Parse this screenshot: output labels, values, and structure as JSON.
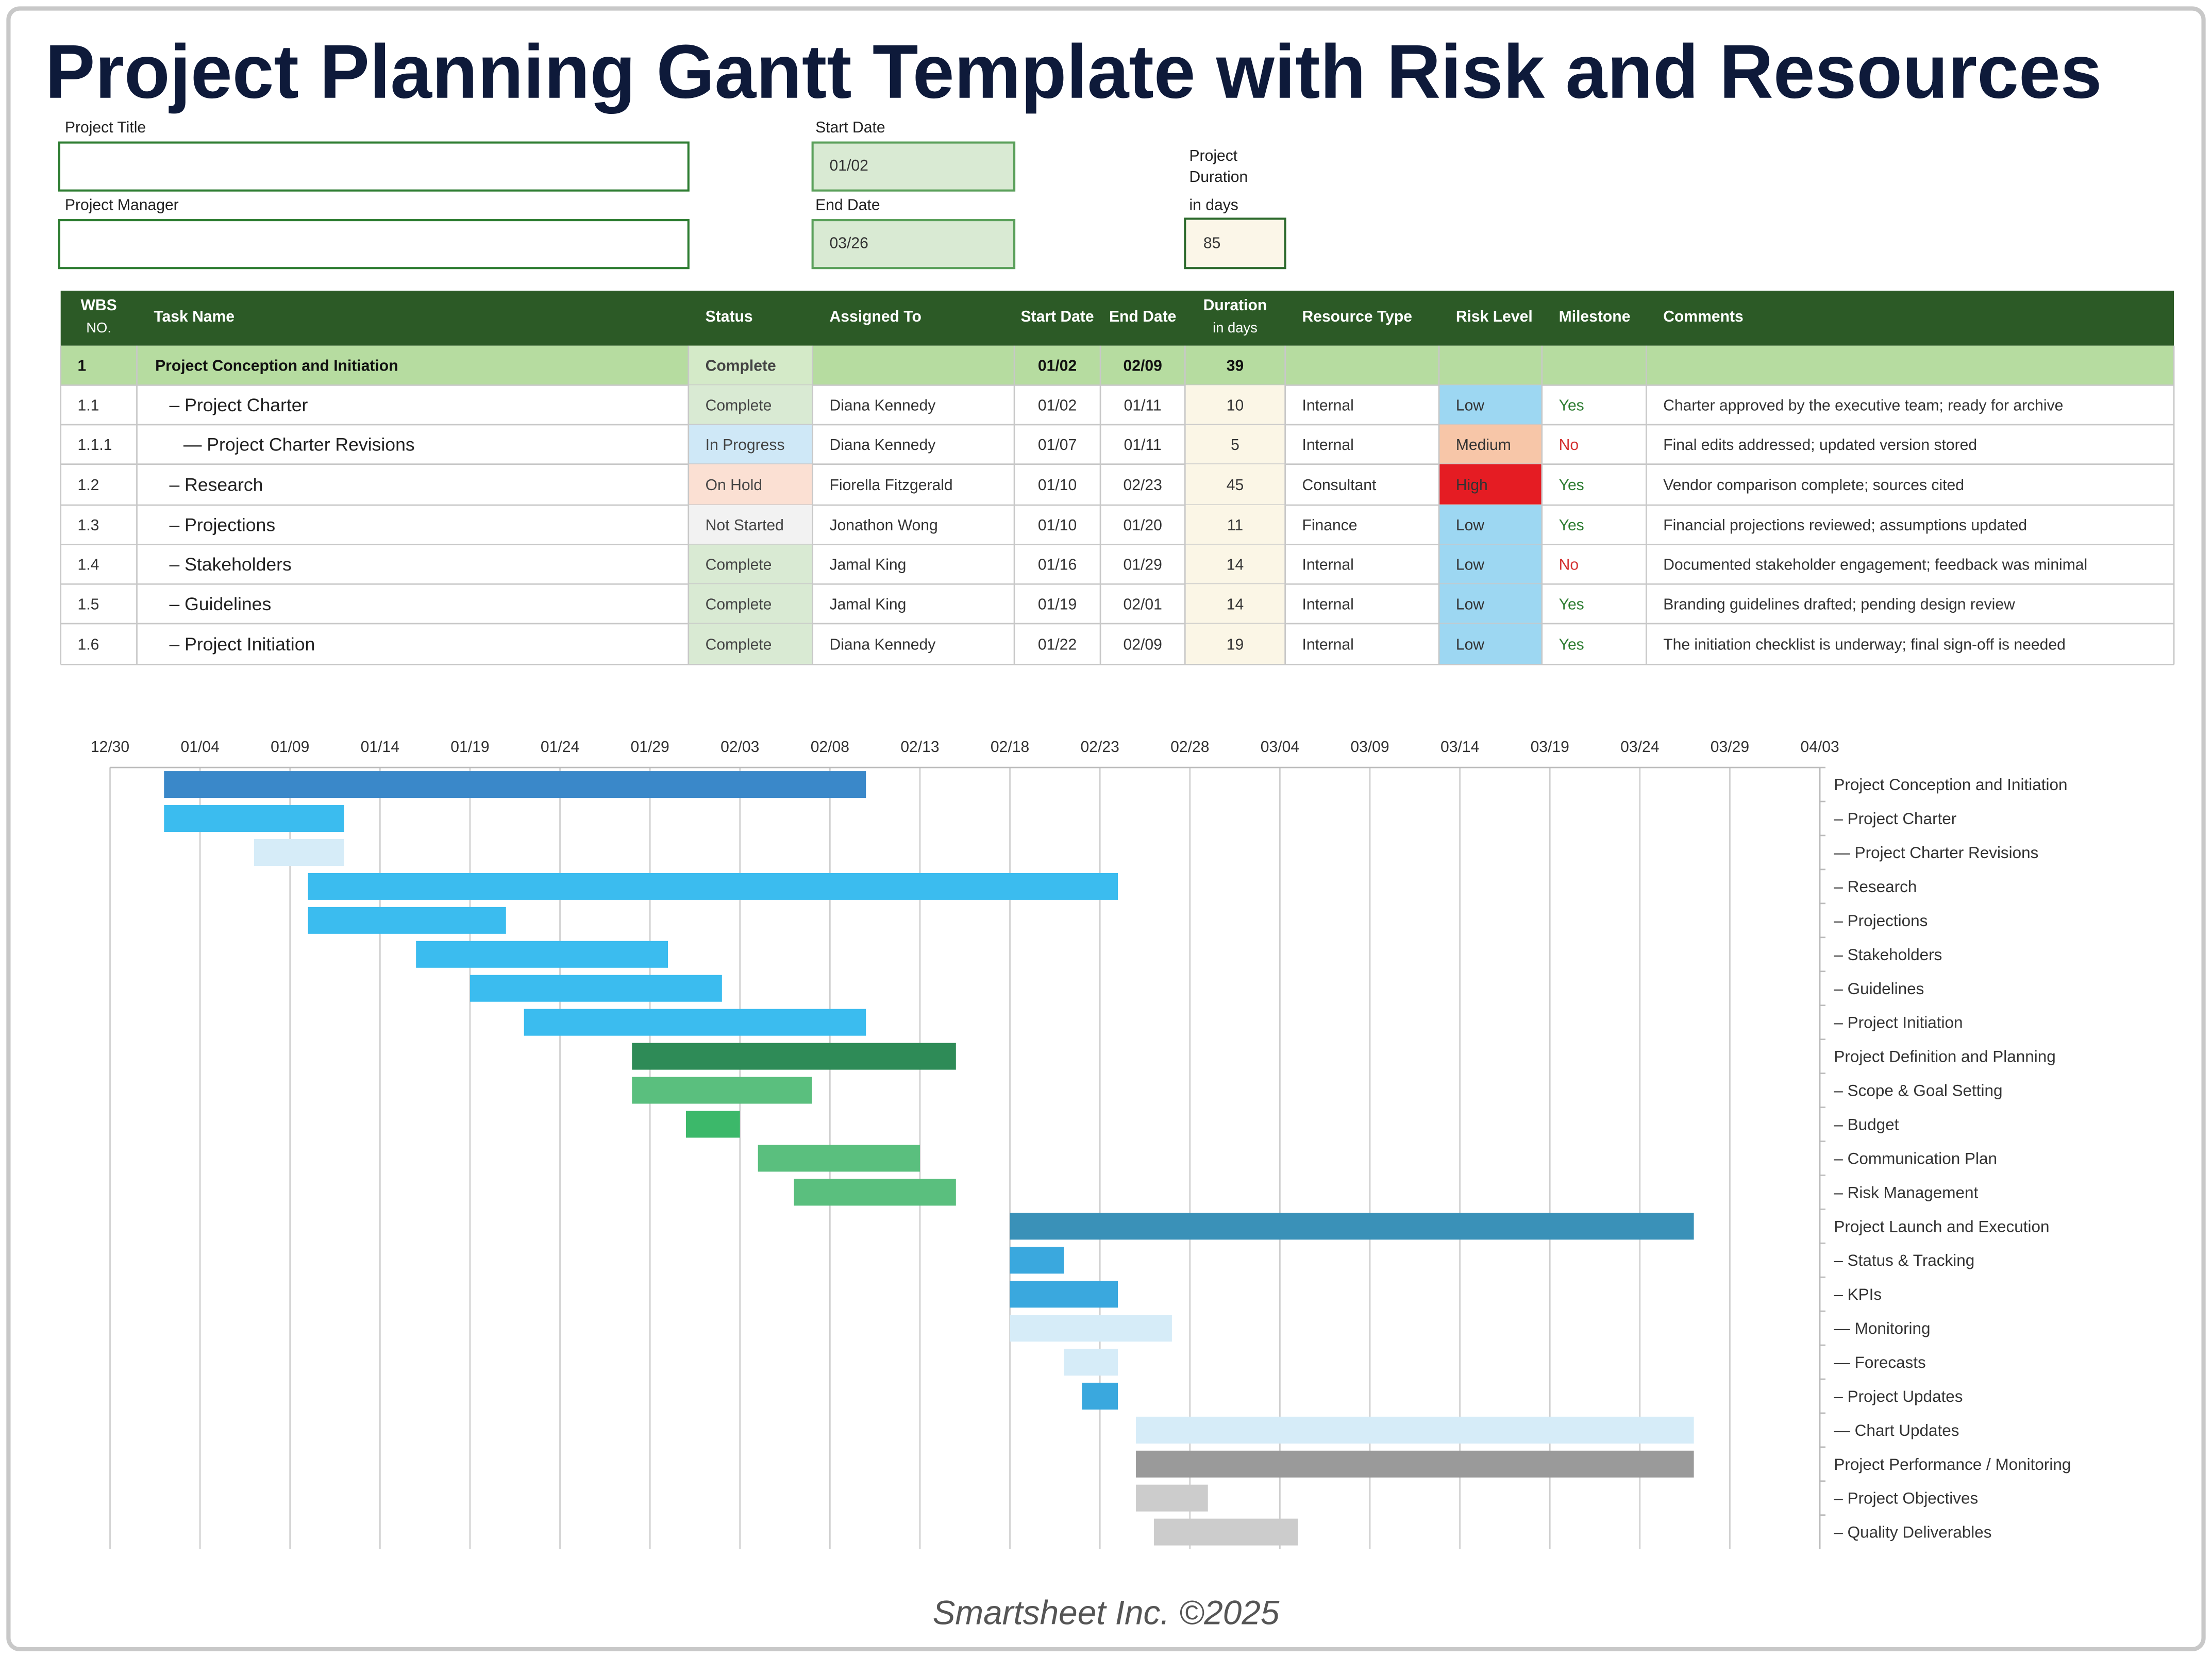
{
  "header": {
    "title": "Project Planning Gantt Template with Risk and Resources"
  },
  "form": {
    "project_title_label": "Project Title",
    "project_manager_label": "Project Manager",
    "start_date_label": "Start Date",
    "start_date": "01/02",
    "end_date_label": "End Date",
    "end_date": "03/26",
    "duration_label": [
      "Project",
      "Duration",
      "in days"
    ],
    "duration": 85
  },
  "table": {
    "header": [
      [
        "WBS",
        "NO."
      ],
      "Task Name",
      "Status",
      "Assigned To",
      "Start Date",
      "End Date",
      [
        "Duration",
        "in days"
      ],
      "Resource Type",
      "Risk Level",
      "Milestone",
      "Comments"
    ],
    "rows": [
      [
        "1",
        "Project Conception and Initiation",
        "Complete",
        null,
        "01/02",
        "02/09",
        39,
        null,
        null,
        null,
        null
      ],
      [
        "1.1",
        "– Project Charter",
        "Complete",
        "Diana Kennedy",
        "01/02",
        "01/11",
        10,
        "Internal",
        "Low",
        "Yes",
        "Charter approved by the executive team; ready for archive"
      ],
      [
        "1.1.1",
        "— Project Charter Revisions",
        "In Progress",
        "Diana Kennedy",
        "01/07",
        "01/11",
        5,
        "Internal",
        "Medium",
        "No",
        "Final edits addressed; updated version stored"
      ],
      [
        "1.2",
        "– Research",
        "On Hold",
        "Fiorella Fitzgerald",
        "01/10",
        "02/23",
        45,
        "Consultant",
        "High",
        "Yes",
        "Vendor comparison complete; sources cited"
      ],
      [
        "1.3",
        "– Projections",
        "Not Started",
        "Jonathon Wong",
        "01/10",
        "01/20",
        11,
        "Finance",
        "Low",
        "Yes",
        "Financial projections reviewed; assumptions updated"
      ],
      [
        "1.4",
        "– Stakeholders",
        "Complete",
        "Jamal King",
        "01/16",
        "01/29",
        14,
        "Internal",
        "Low",
        "No",
        "Documented stakeholder engagement; feedback was minimal"
      ],
      [
        "1.5",
        "– Guidelines",
        "Complete",
        "Jamal King",
        "01/19",
        "02/01",
        14,
        "Internal",
        "Low",
        "Yes",
        "Branding guidelines drafted; pending design review"
      ],
      [
        "1.6",
        "– Project Initiation",
        "Complete",
        "Diana Kennedy",
        "01/22",
        "02/09",
        19,
        "Internal",
        "Low",
        "Yes",
        "The initiation checklist is underway; final sign-off is needed"
      ]
    ],
    "status_colors": [
      "#d4eac8",
      "#d9ead3",
      "#cfe8f7",
      "#fbe0d3",
      "#f2f2f2",
      "#d9ead3",
      "#d9ead3",
      "#d9ead3"
    ],
    "risk_colors": [
      null,
      "#9dd7f2",
      "#f7c6a8",
      "#e51c23",
      "#9dd7f2",
      "#9dd7f2",
      "#9dd7f2",
      "#9dd7f2"
    ],
    "milestone_colors": [
      null,
      "#2e7d32",
      "#d32f2f",
      "#2e7d32",
      "#2e7d32",
      "#d32f2f",
      "#2e7d32",
      "#2e7d32"
    ]
  },
  "gantt": {
    "type": "gantt",
    "xlim": [
      "12/30",
      "04/03"
    ],
    "xticks": [
      "12/30",
      "01/04",
      "01/09",
      "01/14",
      "01/19",
      "01/24",
      "01/29",
      "02/03",
      "02/08",
      "02/13",
      "02/18",
      "02/23",
      "02/28",
      "03/04",
      "03/09",
      "03/14",
      "03/19",
      "03/24",
      "03/29",
      "04/03"
    ],
    "grid": true,
    "tasks": [
      {
        "name": "Project Conception and Initiation",
        "start": "01/02",
        "end": "02/09",
        "color": "#3a88c9"
      },
      {
        "name": "– Project Charter",
        "start": "01/02",
        "end": "01/11",
        "color": "#3bbcef"
      },
      {
        "name": "— Project Charter Revisions",
        "start": "01/07",
        "end": "01/11",
        "color": "#d6ecf8"
      },
      {
        "name": "– Research",
        "start": "01/10",
        "end": "02/23",
        "color": "#3bbcef"
      },
      {
        "name": "– Projections",
        "start": "01/10",
        "end": "01/20",
        "color": "#3bbcef"
      },
      {
        "name": "– Stakeholders",
        "start": "01/16",
        "end": "01/29",
        "color": "#3bbcef"
      },
      {
        "name": "– Guidelines",
        "start": "01/19",
        "end": "02/01",
        "color": "#3bbcef"
      },
      {
        "name": "– Project Initiation",
        "start": "01/22",
        "end": "02/09",
        "color": "#3bbcef"
      },
      {
        "name": "Project Definition and Planning",
        "start": "01/28",
        "end": "02/14",
        "color": "#2e8b57"
      },
      {
        "name": "– Scope & Goal Setting",
        "start": "01/28",
        "end": "02/06",
        "color": "#5abf7e"
      },
      {
        "name": "– Budget",
        "start": "01/31",
        "end": "02/02",
        "color": "#3cb86a"
      },
      {
        "name": "– Communication Plan",
        "start": "02/04",
        "end": "02/12",
        "color": "#5abf7e"
      },
      {
        "name": "– Risk Management",
        "start": "02/06",
        "end": "02/14",
        "color": "#5abf7e"
      },
      {
        "name": "Project Launch and Execution",
        "start": "02/18",
        "end": "03/26",
        "color": "#3a91b8"
      },
      {
        "name": "– Status & Tracking",
        "start": "02/18",
        "end": "02/20",
        "color": "#3aa8de"
      },
      {
        "name": "– KPIs",
        "start": "02/18",
        "end": "02/23",
        "color": "#3aa8de"
      },
      {
        "name": "— Monitoring",
        "start": "02/18",
        "end": "02/26",
        "color": "#d6ecf8"
      },
      {
        "name": "— Forecasts",
        "start": "02/21",
        "end": "02/23",
        "color": "#d6ecf8"
      },
      {
        "name": "– Project Updates",
        "start": "02/22",
        "end": "02/23",
        "color": "#3aa8de"
      },
      {
        "name": "— Chart Updates",
        "start": "02/25",
        "end": "03/26",
        "color": "#d6ecf8"
      },
      {
        "name": "Project Performance / Monitoring",
        "start": "02/25",
        "end": "03/26",
        "color": "#9a9a9a"
      },
      {
        "name": "– Project Objectives",
        "start": "02/25",
        "end": "02/28",
        "color": "#cccccc"
      },
      {
        "name": "– Quality Deliverables",
        "start": "02/26",
        "end": "03/04",
        "color": "#cccccc"
      }
    ]
  },
  "footer": {
    "text": "Smartsheet Inc. ©2025"
  }
}
